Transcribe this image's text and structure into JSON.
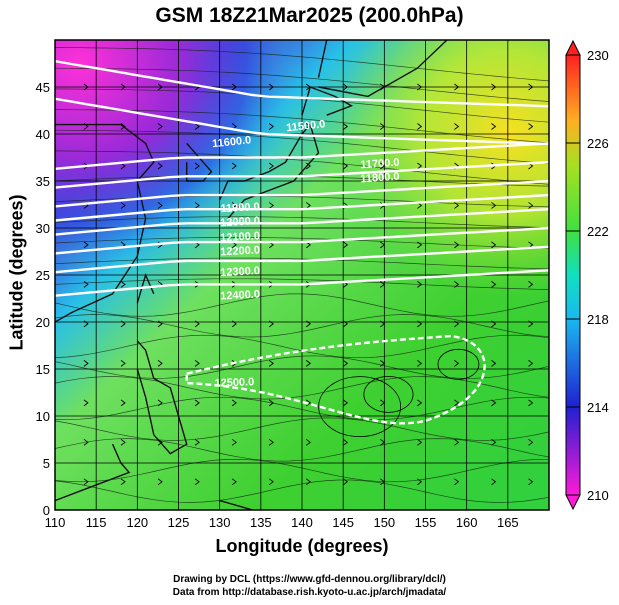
{
  "title": "GSM 18Z21Mar2025 (200.0hPa)",
  "xlabel": "Longitude (degrees)",
  "ylabel": "Latitude  (degrees)",
  "credit_line1": "Drawing by DCL (https://www.gfd-dennou.org/library/dcl/)",
  "credit_line2": "Data from http://database.rish.kyoto-u.ac.jp/arch/jmadata/",
  "chart_data": {
    "type": "heatmap",
    "description_type": "wind streamlines over temperature shading with geopotential height contours",
    "x_ticks": [
      "110",
      "115",
      "120",
      "125",
      "130",
      "135",
      "140",
      "145",
      "150",
      "155",
      "160",
      "165"
    ],
    "y_ticks": [
      "0",
      "5",
      "10",
      "15",
      "20",
      "25",
      "30",
      "35",
      "40",
      "45"
    ],
    "xlim": [
      110,
      170
    ],
    "ylim": [
      0,
      50
    ],
    "colorbar": {
      "ticks": [
        "210",
        "214",
        "218",
        "222",
        "226",
        "230"
      ],
      "range": [
        210,
        230
      ]
    },
    "contour_labels": [
      "11500.0",
      "11600.0",
      "11700.0",
      "11800.0",
      "11900.0",
      "12000.0",
      "12100.0",
      "12200.0",
      "12300.0",
      "12400.0",
      "12500.0"
    ],
    "contours": [
      {
        "level": "11500.0",
        "lat": 44
      },
      {
        "level": "11600.0",
        "lat": 40
      },
      {
        "level": "11700.0",
        "lat": 37.5
      },
      {
        "level": "11800.0",
        "lat": 35.5
      },
      {
        "level": "11900.0",
        "lat": 33.5
      },
      {
        "level": "12000.0",
        "lat": 32
      },
      {
        "level": "12100.0",
        "lat": 30.5
      },
      {
        "level": "12200.0",
        "lat": 28.5
      },
      {
        "level": "12300.0",
        "lat": 26.5
      },
      {
        "level": "12400.0",
        "lat": 24
      }
    ]
  }
}
